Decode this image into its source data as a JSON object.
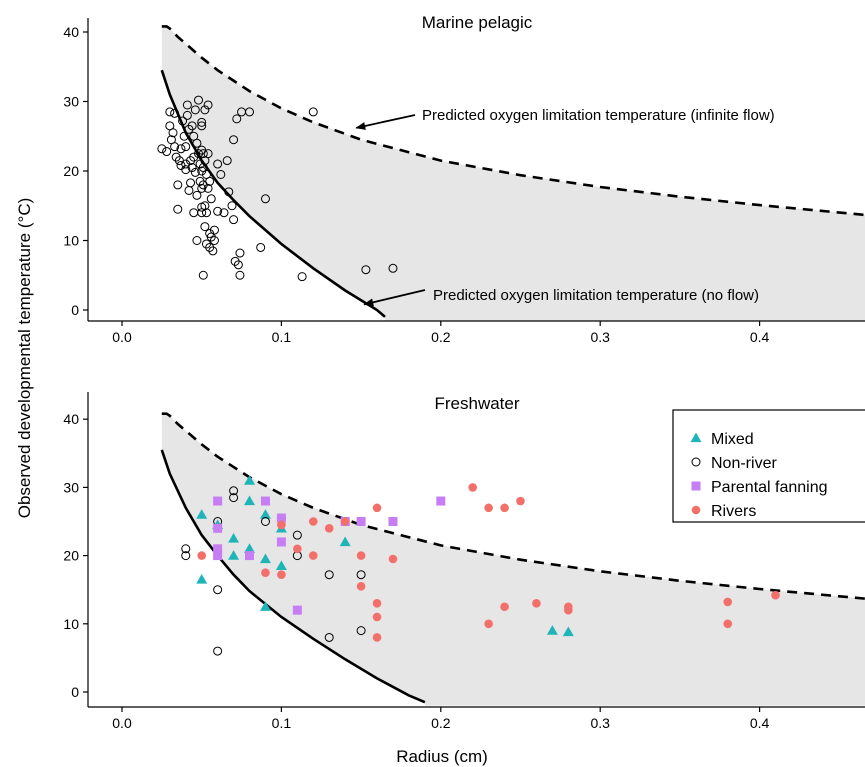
{
  "chart_data": [
    {
      "type": "scatter",
      "title": "Marine pelagic",
      "xlabel": "",
      "ylabel": "Observed developmental temperature (°C)",
      "xlim": [
        -0.025,
        0.47
      ],
      "ylim": [
        -2,
        42
      ],
      "x_ticks": [
        "0.0",
        "0.1",
        "0.2",
        "0.3",
        "0.4"
      ],
      "y_ticks": [
        "0",
        "10",
        "20",
        "30",
        "40"
      ],
      "curves": [
        {
          "id": "infinite_flow",
          "style": "dashed",
          "points": [
            [
              0.025,
              40.8
            ],
            [
              0.028,
              40.8
            ],
            [
              0.03,
              40.5
            ],
            [
              0.035,
              39.3
            ],
            [
              0.04,
              38.3
            ],
            [
              0.05,
              36.3
            ],
            [
              0.06,
              34.5
            ],
            [
              0.08,
              31.5
            ],
            [
              0.1,
              29.0
            ],
            [
              0.12,
              27.0
            ],
            [
              0.15,
              24.5
            ],
            [
              0.2,
              21.5
            ],
            [
              0.25,
              19.4
            ],
            [
              0.3,
              17.7
            ],
            [
              0.35,
              16.3
            ],
            [
              0.4,
              15.1
            ],
            [
              0.47,
              13.6
            ]
          ]
        },
        {
          "id": "no_flow",
          "style": "solid",
          "points": [
            [
              0.025,
              34.5
            ],
            [
              0.03,
              31.0
            ],
            [
              0.04,
              25.5
            ],
            [
              0.05,
              21.5
            ],
            [
              0.06,
              18.3
            ],
            [
              0.07,
              15.8
            ],
            [
              0.08,
              13.5
            ],
            [
              0.1,
              9.5
            ],
            [
              0.12,
              6.0
            ],
            [
              0.14,
              2.8
            ],
            [
              0.16,
              0.0
            ],
            [
              0.165,
              -1.0
            ]
          ]
        }
      ],
      "annotations": [
        {
          "text": "Predicted oxygen limitation temperature (infinite flow)",
          "arrow_to": [
            0.147,
            26.2
          ]
        },
        {
          "text": "Predicted oxygen limitation temperature (no flow)",
          "arrow_to": [
            0.152,
            0.8
          ]
        }
      ],
      "series": [
        {
          "marker": "open-circle",
          "points": [
            [
              0.025,
              23.2
            ],
            [
              0.028,
              22.8
            ],
            [
              0.03,
              28.5
            ],
            [
              0.03,
              26.5
            ],
            [
              0.031,
              24.5
            ],
            [
              0.032,
              25.5
            ],
            [
              0.033,
              28.3
            ],
            [
              0.033,
              23.5
            ],
            [
              0.034,
              22.0
            ],
            [
              0.035,
              18.0
            ],
            [
              0.035,
              14.5
            ],
            [
              0.036,
              21.5
            ],
            [
              0.037,
              23.2
            ],
            [
              0.037,
              20.8
            ],
            [
              0.038,
              27.2
            ],
            [
              0.039,
              25.0
            ],
            [
              0.04,
              23.5
            ],
            [
              0.04,
              21.0
            ],
            [
              0.04,
              20.2
            ],
            [
              0.041,
              29.5
            ],
            [
              0.041,
              28.0
            ],
            [
              0.042,
              26.0
            ],
            [
              0.042,
              17.2
            ],
            [
              0.043,
              21.5
            ],
            [
              0.043,
              18.3
            ],
            [
              0.044,
              26.5
            ],
            [
              0.044,
              20.5
            ],
            [
              0.045,
              25.0
            ],
            [
              0.045,
              22.0
            ],
            [
              0.045,
              14.0
            ],
            [
              0.046,
              28.8
            ],
            [
              0.046,
              19.8
            ],
            [
              0.047,
              24.0
            ],
            [
              0.047,
              16.5
            ],
            [
              0.047,
              10.0
            ],
            [
              0.048,
              30.2
            ],
            [
              0.048,
              22.5
            ],
            [
              0.049,
              21.0
            ],
            [
              0.049,
              18.5
            ],
            [
              0.05,
              27.0
            ],
            [
              0.05,
              26.5
            ],
            [
              0.05,
              23.0
            ],
            [
              0.05,
              20.0
            ],
            [
              0.05,
              17.5
            ],
            [
              0.05,
              14.8
            ],
            [
              0.05,
              14.0
            ],
            [
              0.051,
              22.5
            ],
            [
              0.051,
              20.5
            ],
            [
              0.051,
              18.0
            ],
            [
              0.052,
              28.8
            ],
            [
              0.052,
              21.5
            ],
            [
              0.052,
              15.0
            ],
            [
              0.052,
              12.0
            ],
            [
              0.053,
              19.5
            ],
            [
              0.053,
              14.0
            ],
            [
              0.053,
              9.5
            ],
            [
              0.054,
              29.5
            ],
            [
              0.054,
              22.5
            ],
            [
              0.054,
              17.5
            ],
            [
              0.055,
              18.5
            ],
            [
              0.055,
              11.0
            ],
            [
              0.055,
              9.0
            ],
            [
              0.056,
              16.0
            ],
            [
              0.056,
              10.5
            ],
            [
              0.057,
              8.5
            ],
            [
              0.058,
              11.5
            ],
            [
              0.058,
              10.0
            ],
            [
              0.06,
              21.0
            ],
            [
              0.06,
              14.2
            ],
            [
              0.062,
              19.5
            ],
            [
              0.064,
              14.0
            ],
            [
              0.066,
              21.5
            ],
            [
              0.067,
              17.0
            ],
            [
              0.069,
              15.0
            ],
            [
              0.07,
              24.5
            ],
            [
              0.07,
              13.0
            ],
            [
              0.071,
              7.0
            ],
            [
              0.072,
              27.5
            ],
            [
              0.073,
              6.5
            ],
            [
              0.074,
              5.0
            ],
            [
              0.074,
              8.2
            ],
            [
              0.075,
              28.5
            ],
            [
              0.08,
              28.5
            ],
            [
              0.087,
              9.0
            ],
            [
              0.09,
              16.0
            ],
            [
              0.051,
              5.0
            ],
            [
              0.113,
              4.8
            ],
            [
              0.12,
              28.5
            ],
            [
              0.153,
              5.8
            ],
            [
              0.17,
              6.0
            ]
          ]
        }
      ]
    },
    {
      "type": "scatter",
      "title": "Freshwater",
      "xlabel": "Radius (cm)",
      "ylabel": "",
      "xlim": [
        -0.025,
        0.47
      ],
      "ylim": [
        -2,
        42
      ],
      "x_ticks": [
        "0.0",
        "0.1",
        "0.2",
        "0.3",
        "0.4"
      ],
      "y_ticks": [
        "0",
        "10",
        "20",
        "30",
        "40"
      ],
      "legend": "top-right",
      "curves": [
        {
          "id": "infinite_flow",
          "style": "dashed",
          "points": [
            [
              0.025,
              40.8
            ],
            [
              0.028,
              40.8
            ],
            [
              0.03,
              40.5
            ],
            [
              0.035,
              39.3
            ],
            [
              0.04,
              38.3
            ],
            [
              0.05,
              36.3
            ],
            [
              0.06,
              34.5
            ],
            [
              0.08,
              31.5
            ],
            [
              0.1,
              29.0
            ],
            [
              0.12,
              27.0
            ],
            [
              0.15,
              24.5
            ],
            [
              0.2,
              21.5
            ],
            [
              0.25,
              19.4
            ],
            [
              0.3,
              17.7
            ],
            [
              0.35,
              16.3
            ],
            [
              0.4,
              15.1
            ],
            [
              0.47,
              13.6
            ]
          ]
        },
        {
          "id": "no_flow",
          "style": "solid",
          "points": [
            [
              0.025,
              35.5
            ],
            [
              0.03,
              32.0
            ],
            [
              0.04,
              27.0
            ],
            [
              0.05,
              23.0
            ],
            [
              0.06,
              20.0
            ],
            [
              0.07,
              17.2
            ],
            [
              0.08,
              14.8
            ],
            [
              0.1,
              11.0
            ],
            [
              0.12,
              7.8
            ],
            [
              0.14,
              4.8
            ],
            [
              0.16,
              2.0
            ],
            [
              0.18,
              -0.5
            ],
            [
              0.19,
              -1.5
            ]
          ]
        }
      ],
      "series": [
        {
          "name": "Mixed",
          "marker": "triangle",
          "color": "#1fb5b8",
          "points": [
            [
              0.05,
              26.0
            ],
            [
              0.05,
              16.5
            ],
            [
              0.06,
              24.5
            ],
            [
              0.07,
              22.5
            ],
            [
              0.07,
              20.0
            ],
            [
              0.08,
              31.0
            ],
            [
              0.08,
              28.0
            ],
            [
              0.08,
              21.0
            ],
            [
              0.09,
              26.0
            ],
            [
              0.09,
              19.5
            ],
            [
              0.09,
              12.5
            ],
            [
              0.1,
              24.0
            ],
            [
              0.1,
              18.5
            ],
            [
              0.14,
              22.0
            ],
            [
              0.27,
              9.0
            ],
            [
              0.28,
              8.8
            ]
          ]
        },
        {
          "name": "Non-river",
          "marker": "open-circle",
          "color": "#000000",
          "points": [
            [
              0.04,
              21.0
            ],
            [
              0.04,
              20.0
            ],
            [
              0.06,
              25.0
            ],
            [
              0.06,
              15.0
            ],
            [
              0.06,
              6.0
            ],
            [
              0.07,
              29.5
            ],
            [
              0.07,
              28.5
            ],
            [
              0.09,
              25.0
            ],
            [
              0.1,
              25.5
            ],
            [
              0.11,
              23.0
            ],
            [
              0.11,
              20.0
            ],
            [
              0.13,
              17.2
            ],
            [
              0.13,
              8.0
            ],
            [
              0.15,
              17.2
            ],
            [
              0.15,
              9.0
            ]
          ]
        },
        {
          "name": "Parental fanning",
          "marker": "square",
          "color": "#c77df3",
          "points": [
            [
              0.06,
              28.0
            ],
            [
              0.06,
              24.0
            ],
            [
              0.06,
              21.0
            ],
            [
              0.06,
              20.0
            ],
            [
              0.08,
              20.0
            ],
            [
              0.09,
              28.0
            ],
            [
              0.1,
              25.5
            ],
            [
              0.1,
              22.0
            ],
            [
              0.11,
              12.0
            ],
            [
              0.14,
              25.0
            ],
            [
              0.15,
              25.0
            ],
            [
              0.17,
              25.0
            ],
            [
              0.2,
              28.0
            ]
          ]
        },
        {
          "name": "Rivers",
          "marker": "filled-circle",
          "color": "#f27069",
          "points": [
            [
              0.05,
              20.0
            ],
            [
              0.09,
              17.5
            ],
            [
              0.1,
              17.2
            ],
            [
              0.1,
              24.5
            ],
            [
              0.11,
              21.0
            ],
            [
              0.12,
              25.0
            ],
            [
              0.12,
              20.0
            ],
            [
              0.13,
              24.0
            ],
            [
              0.14,
              25.0
            ],
            [
              0.15,
              20.0
            ],
            [
              0.15,
              15.5
            ],
            [
              0.16,
              27.0
            ],
            [
              0.16,
              13.0
            ],
            [
              0.16,
              11.0
            ],
            [
              0.16,
              8.0
            ],
            [
              0.17,
              19.5
            ],
            [
              0.22,
              30.0
            ],
            [
              0.23,
              27.0
            ],
            [
              0.23,
              10.0
            ],
            [
              0.24,
              27.0
            ],
            [
              0.24,
              12.5
            ],
            [
              0.25,
              28.0
            ],
            [
              0.26,
              13.0
            ],
            [
              0.28,
              12.5
            ],
            [
              0.28,
              12.0
            ],
            [
              0.38,
              13.2
            ],
            [
              0.38,
              10.0
            ],
            [
              0.41,
              14.2
            ]
          ]
        }
      ]
    }
  ]
}
